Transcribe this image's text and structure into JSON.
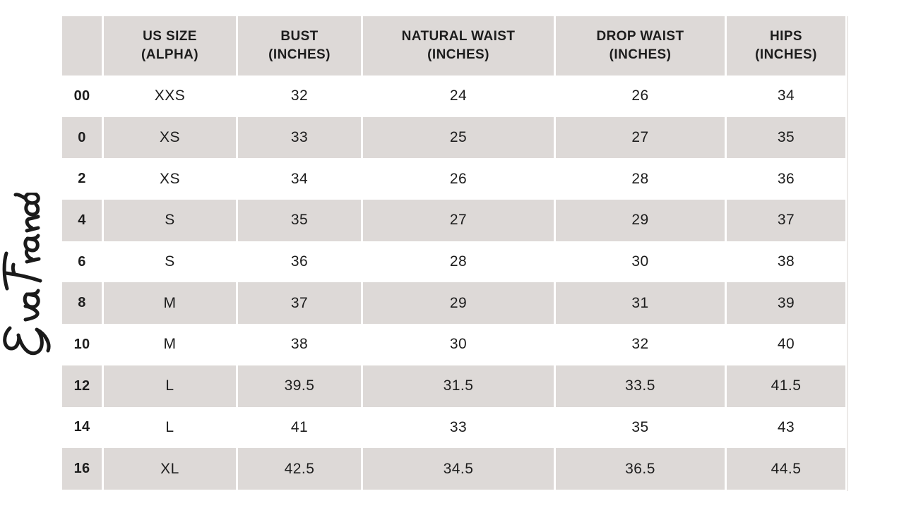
{
  "brand": {
    "logo_text": "Eva Franco"
  },
  "colors": {
    "band": "#ddd9d7",
    "text": "#1d1d1d",
    "page_background": "#ffffff",
    "edge_line": "#eceae8"
  },
  "chart_data": {
    "type": "table",
    "header": [
      {
        "line1": "",
        "line2": ""
      },
      {
        "line1": "US SIZE",
        "line2": "(ALPHA)"
      },
      {
        "line1": "BUST",
        "line2": "(INCHES)"
      },
      {
        "line1": "NATURAL WAIST",
        "line2": "(INCHES)"
      },
      {
        "line1": "DROP WAIST",
        "line2": "(INCHES)"
      },
      {
        "line1": "HIPS",
        "line2": "(INCHES)"
      }
    ],
    "rows": [
      {
        "us_size": "00",
        "alpha": "XXS",
        "bust": "32",
        "natural_waist": "24",
        "drop_waist": "26",
        "hips": "34"
      },
      {
        "us_size": "0",
        "alpha": "XS",
        "bust": "33",
        "natural_waist": "25",
        "drop_waist": "27",
        "hips": "35"
      },
      {
        "us_size": "2",
        "alpha": "XS",
        "bust": "34",
        "natural_waist": "26",
        "drop_waist": "28",
        "hips": "36"
      },
      {
        "us_size": "4",
        "alpha": "S",
        "bust": "35",
        "natural_waist": "27",
        "drop_waist": "29",
        "hips": "37"
      },
      {
        "us_size": "6",
        "alpha": "S",
        "bust": "36",
        "natural_waist": "28",
        "drop_waist": "30",
        "hips": "38"
      },
      {
        "us_size": "8",
        "alpha": "M",
        "bust": "37",
        "natural_waist": "29",
        "drop_waist": "31",
        "hips": "39"
      },
      {
        "us_size": "10",
        "alpha": "M",
        "bust": "38",
        "natural_waist": "30",
        "drop_waist": "32",
        "hips": "40"
      },
      {
        "us_size": "12",
        "alpha": "L",
        "bust": "39.5",
        "natural_waist": "31.5",
        "drop_waist": "33.5",
        "hips": "41.5"
      },
      {
        "us_size": "14",
        "alpha": "L",
        "bust": "41",
        "natural_waist": "33",
        "drop_waist": "35",
        "hips": "43"
      },
      {
        "us_size": "16",
        "alpha": "XL",
        "bust": "42.5",
        "natural_waist": "34.5",
        "drop_waist": "36.5",
        "hips": "44.5"
      }
    ]
  }
}
